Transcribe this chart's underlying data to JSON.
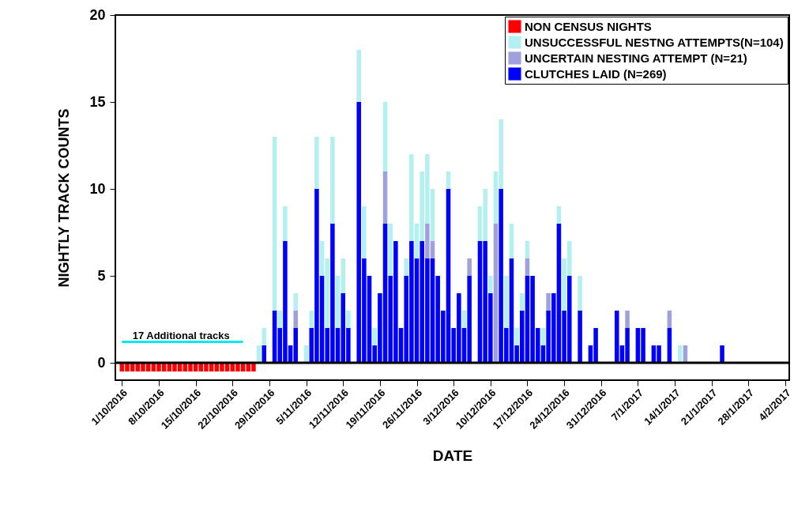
{
  "chart_data": {
    "type": "bar",
    "stacked": true,
    "xlabel": "DATE",
    "ylabel": "NIGHTLY TRACK COUNTS",
    "xlim": [
      "2016-09-30T12:00",
      "2017-02-04"
    ],
    "ylim": [
      -1,
      20
    ],
    "yticks": [
      0,
      5,
      10,
      15,
      20
    ],
    "xticks": [
      {
        "value": "2016-10-01",
        "label": "1/10/2016"
      },
      {
        "value": "2016-10-08",
        "label": "8/10/2016"
      },
      {
        "value": "2016-10-15",
        "label": "15/10/2016"
      },
      {
        "value": "2016-10-22",
        "label": "22/10/2016"
      },
      {
        "value": "2016-10-29",
        "label": "29/10/2016"
      },
      {
        "value": "2016-11-05",
        "label": "5/11/2016"
      },
      {
        "value": "2016-11-12",
        "label": "12/11/2016"
      },
      {
        "value": "2016-11-19",
        "label": "19/11/2016"
      },
      {
        "value": "2016-11-26",
        "label": "26/11/2016"
      },
      {
        "value": "2016-12-03",
        "label": "3/12/2016"
      },
      {
        "value": "2016-12-10",
        "label": "10/12/2016"
      },
      {
        "value": "2016-12-17",
        "label": "17/12/2016"
      },
      {
        "value": "2016-12-24",
        "label": "24/12/2016"
      },
      {
        "value": "2016-12-31",
        "label": "31/12/2016"
      },
      {
        "value": "2017-01-07",
        "label": "7/1/2017"
      },
      {
        "value": "2017-01-14",
        "label": "14/1/2017"
      },
      {
        "value": "2017-01-21",
        "label": "21/1/2017"
      },
      {
        "value": "2017-01-28",
        "label": "28/1/2017"
      },
      {
        "value": "2017-02-04",
        "label": "4/2/2017"
      }
    ],
    "grid": false,
    "legend": "top right",
    "x": [
      "2016-10-01",
      "2016-10-02",
      "2016-10-03",
      "2016-10-04",
      "2016-10-05",
      "2016-10-06",
      "2016-10-07",
      "2016-10-08",
      "2016-10-09",
      "2016-10-10",
      "2016-10-11",
      "2016-10-12",
      "2016-10-13",
      "2016-10-14",
      "2016-10-15",
      "2016-10-16",
      "2016-10-17",
      "2016-10-18",
      "2016-10-19",
      "2016-10-20",
      "2016-10-21",
      "2016-10-22",
      "2016-10-23",
      "2016-10-24",
      "2016-10-25",
      "2016-10-26",
      "2016-10-27",
      "2016-10-28",
      "2016-10-30",
      "2016-10-31",
      "2016-11-01",
      "2016-11-02",
      "2016-11-03",
      "2016-11-05",
      "2016-11-06",
      "2016-11-07",
      "2016-11-08",
      "2016-11-09",
      "2016-11-10",
      "2016-11-11",
      "2016-11-12",
      "2016-11-13",
      "2016-11-15",
      "2016-11-16",
      "2016-11-17",
      "2016-11-18",
      "2016-11-19",
      "2016-11-20",
      "2016-11-21",
      "2016-11-22",
      "2016-11-23",
      "2016-11-24",
      "2016-11-25",
      "2016-11-26",
      "2016-11-27",
      "2016-11-28",
      "2016-11-29",
      "2016-11-30",
      "2016-12-01",
      "2016-12-02",
      "2016-12-03",
      "2016-12-04",
      "2016-12-05",
      "2016-12-06",
      "2016-12-08",
      "2016-12-09",
      "2016-12-10",
      "2016-12-11",
      "2016-12-12",
      "2016-12-13",
      "2016-12-14",
      "2016-12-15",
      "2016-12-16",
      "2016-12-17",
      "2016-12-18",
      "2016-12-19",
      "2016-12-20",
      "2016-12-21",
      "2016-12-22",
      "2016-12-23",
      "2016-12-24",
      "2016-12-25",
      "2016-12-27",
      "2016-12-29",
      "2016-12-30",
      "2017-01-03",
      "2017-01-04",
      "2017-01-05",
      "2017-01-07",
      "2017-01-08",
      "2017-01-10",
      "2017-01-11",
      "2017-01-13",
      "2017-01-15",
      "2017-01-16",
      "2017-01-23"
    ],
    "series": [
      {
        "name": "CLUTCHES LAID (N=269)",
        "color": "#0000ff",
        "values": [
          null,
          null,
          null,
          null,
          null,
          null,
          null,
          null,
          null,
          null,
          null,
          null,
          null,
          null,
          null,
          null,
          null,
          null,
          null,
          null,
          null,
          null,
          null,
          null,
          null,
          null,
          null,
          1,
          3,
          2,
          7,
          1,
          2,
          null,
          2,
          10,
          5,
          2,
          8,
          2,
          4,
          2,
          15,
          6,
          5,
          1,
          4,
          8,
          5,
          7,
          2,
          5,
          7,
          6,
          7,
          6,
          6,
          5,
          3,
          10,
          2,
          4,
          2,
          5,
          7,
          7,
          4,
          null,
          10,
          2,
          6,
          1,
          3,
          5,
          5,
          2,
          1,
          3,
          4,
          8,
          3,
          5,
          3,
          1,
          2,
          3,
          1,
          2,
          2,
          2,
          1,
          1,
          2,
          null,
          null,
          1
        ]
      },
      {
        "name": "UNCERTAIN NESTING ATTEMPT (N=21)",
        "color": "#a0a0dc",
        "values": [
          null,
          null,
          null,
          null,
          null,
          null,
          null,
          null,
          null,
          null,
          null,
          null,
          null,
          null,
          null,
          null,
          null,
          null,
          null,
          null,
          null,
          null,
          null,
          null,
          null,
          null,
          null,
          null,
          null,
          null,
          null,
          null,
          1,
          null,
          null,
          null,
          null,
          null,
          null,
          null,
          null,
          null,
          null,
          null,
          null,
          null,
          null,
          3,
          null,
          null,
          null,
          null,
          null,
          null,
          null,
          2,
          1,
          null,
          null,
          null,
          null,
          null,
          null,
          1,
          null,
          null,
          null,
          8,
          null,
          null,
          null,
          null,
          null,
          1,
          null,
          null,
          null,
          1,
          null,
          null,
          null,
          null,
          null,
          null,
          null,
          null,
          null,
          1,
          null,
          null,
          null,
          null,
          1,
          null,
          1,
          null
        ]
      },
      {
        "name": "UNSUCCESSFUL NESTNG ATTEMPTS(N=104)",
        "color": "#b4f0f0",
        "values": [
          null,
          null,
          null,
          null,
          null,
          null,
          null,
          null,
          null,
          null,
          null,
          null,
          null,
          null,
          null,
          null,
          null,
          null,
          null,
          null,
          null,
          null,
          null,
          null,
          null,
          null,
          1,
          1,
          10,
          1,
          2,
          null,
          1,
          1,
          1,
          3,
          2,
          4,
          5,
          3,
          2,
          1,
          3,
          3,
          null,
          1,
          null,
          4,
          3,
          null,
          null,
          1,
          5,
          2,
          4,
          4,
          3,
          null,
          null,
          1,
          null,
          null,
          1,
          null,
          2,
          3,
          1,
          3,
          4,
          3,
          2,
          1,
          1,
          1,
          null,
          null,
          1,
          null,
          null,
          1,
          3,
          2,
          2,
          null,
          null,
          null,
          null,
          null,
          null,
          null,
          null,
          null,
          null,
          1,
          null,
          null
        ]
      },
      {
        "name": "NON CENSUS NIGHTS",
        "color": "#ff0000",
        "values": [
          -0.5,
          -0.5,
          -0.5,
          -0.5,
          -0.5,
          -0.5,
          -0.5,
          -0.5,
          -0.5,
          -0.5,
          -0.5,
          -0.5,
          -0.5,
          -0.5,
          -0.5,
          -0.5,
          -0.5,
          -0.5,
          -0.5,
          -0.5,
          -0.5,
          -0.5,
          -0.5,
          -0.5,
          -0.5,
          -0.5,
          null,
          null,
          null,
          null,
          null,
          null,
          null,
          null,
          null,
          null,
          null,
          null,
          null,
          null,
          null,
          null,
          null,
          null,
          null,
          null,
          null,
          null,
          null,
          null,
          null,
          null,
          null,
          null,
          null,
          null,
          null,
          null,
          null,
          null,
          null,
          null,
          null,
          null,
          null,
          null,
          null,
          null,
          null,
          null,
          null,
          null,
          null,
          null,
          null,
          null,
          null,
          null,
          null,
          null,
          null,
          null,
          null,
          null,
          null,
          null,
          null,
          null,
          null,
          null,
          null,
          null,
          null,
          null,
          null,
          null
        ]
      },
      {
        "type": "line",
        "color": "#00e8f0",
        "x": [
          "2016-10-01",
          "2016-10-24"
        ],
        "values": [
          1.2,
          1.2
        ]
      }
    ],
    "ref_lines": [
      {
        "axis": "y",
        "value": 0,
        "color": "#000000"
      }
    ],
    "annotations": [
      {
        "text": "17 Additional tracks",
        "x": "2016-10-03",
        "y": 1.2
      }
    ]
  }
}
